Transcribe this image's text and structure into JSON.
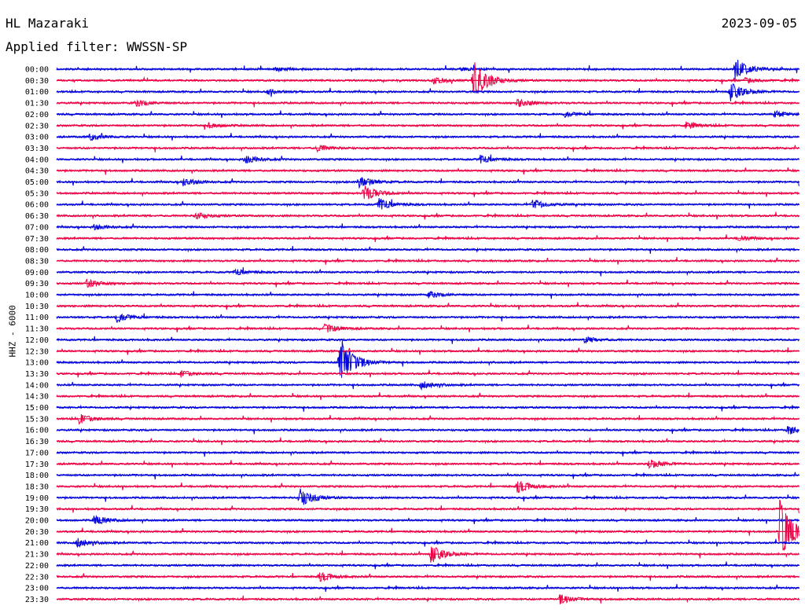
{
  "header": {
    "station_title": "HL Mazaraki",
    "filter_label": "Applied filter: WWSSN-SP",
    "date": "2023-09-05",
    "channel_label": "HHZ - 6000"
  },
  "colors": {
    "trace_a": "#0000dd",
    "trace_b": "#ee0044",
    "background": "#ffffff"
  },
  "chart_data": {
    "type": "line",
    "description_kind": "helicorder",
    "title": "HL Mazaraki",
    "subtitle": "Applied filter: WWSSN-SP",
    "date": "2023-09-05",
    "ylabel": "HHZ - 6000",
    "row_labels": [
      "00:00",
      "00:30",
      "01:00",
      "01:30",
      "02:00",
      "02:30",
      "03:00",
      "03:30",
      "04:00",
      "04:30",
      "05:00",
      "05:30",
      "06:00",
      "06:30",
      "07:00",
      "07:30",
      "08:00",
      "08:30",
      "09:00",
      "09:30",
      "10:00",
      "10:30",
      "11:00",
      "11:30",
      "12:00",
      "12:30",
      "13:00",
      "13:30",
      "14:00",
      "14:30",
      "15:00",
      "15:30",
      "16:00",
      "16:30",
      "17:00",
      "17:30",
      "18:00",
      "18:30",
      "19:00",
      "19:30",
      "20:00",
      "20:30",
      "21:00",
      "21:30",
      "22:00",
      "22:30",
      "23:00",
      "23:30"
    ],
    "row_colors": [
      "blue",
      "red"
    ],
    "minutes_per_row": 30,
    "events": [
      {
        "row": "00:00",
        "minute": 8.8,
        "amp": 2.5
      },
      {
        "row": "00:00",
        "minute": 16.3,
        "amp": 2
      },
      {
        "row": "00:00",
        "minute": 27.4,
        "amp": 14
      },
      {
        "row": "00:30",
        "minute": 16.8,
        "amp": 28
      },
      {
        "row": "00:30",
        "minute": 15.2,
        "amp": 4
      },
      {
        "row": "00:30",
        "minute": 27.8,
        "amp": 3
      },
      {
        "row": "01:00",
        "minute": 8.5,
        "amp": 3
      },
      {
        "row": "01:00",
        "minute": 27.2,
        "amp": 12
      },
      {
        "row": "01:30",
        "minute": 3.2,
        "amp": 4
      },
      {
        "row": "01:30",
        "minute": 18.6,
        "amp": 5
      },
      {
        "row": "02:00",
        "minute": 20.5,
        "amp": 3
      },
      {
        "row": "02:00",
        "minute": 29,
        "amp": 4
      },
      {
        "row": "02:30",
        "minute": 6.1,
        "amp": 3
      },
      {
        "row": "02:30",
        "minute": 25.4,
        "amp": 4
      },
      {
        "row": "03:00",
        "minute": 1.3,
        "amp": 4
      },
      {
        "row": "03:30",
        "minute": 10.5,
        "amp": 4
      },
      {
        "row": "04:00",
        "minute": 7.6,
        "amp": 5
      },
      {
        "row": "04:00",
        "minute": 17.1,
        "amp": 5
      },
      {
        "row": "05:00",
        "minute": 5.1,
        "amp": 5
      },
      {
        "row": "05:00",
        "minute": 12.2,
        "amp": 8
      },
      {
        "row": "05:30",
        "minute": 12.4,
        "amp": 10
      },
      {
        "row": "06:00",
        "minute": 13,
        "amp": 8
      },
      {
        "row": "06:00",
        "minute": 19.2,
        "amp": 6
      },
      {
        "row": "06:30",
        "minute": 5.6,
        "amp": 4
      },
      {
        "row": "07:00",
        "minute": 1.5,
        "amp": 3
      },
      {
        "row": "07:30",
        "minute": 27.5,
        "amp": 3
      },
      {
        "row": "09:00",
        "minute": 7.2,
        "amp": 4
      },
      {
        "row": "09:30",
        "minute": 1.2,
        "amp": 5
      },
      {
        "row": "10:00",
        "minute": 15,
        "amp": 4
      },
      {
        "row": "11:00",
        "minute": 2.4,
        "amp": 6
      },
      {
        "row": "11:30",
        "minute": 10.8,
        "amp": 6
      },
      {
        "row": "12:00",
        "minute": 21.3,
        "amp": 4
      },
      {
        "row": "13:00",
        "minute": 11.4,
        "amp": 36
      },
      {
        "row": "13:30",
        "minute": 5,
        "amp": 4
      },
      {
        "row": "14:00",
        "minute": 14.7,
        "amp": 5
      },
      {
        "row": "15:30",
        "minute": 0.9,
        "amp": 6
      },
      {
        "row": "16:00",
        "minute": 29.5,
        "amp": 6
      },
      {
        "row": "17:30",
        "minute": 23.9,
        "amp": 6
      },
      {
        "row": "18:30",
        "minute": 18.6,
        "amp": 8
      },
      {
        "row": "19:00",
        "minute": 9.8,
        "amp": 12
      },
      {
        "row": "20:00",
        "minute": 1.5,
        "amp": 6
      },
      {
        "row": "21:00",
        "minute": 0.8,
        "amp": 6
      },
      {
        "row": "20:30",
        "minute": 29.2,
        "amp": 40
      },
      {
        "row": "21:30",
        "minute": 15.1,
        "amp": 12
      },
      {
        "row": "22:30",
        "minute": 10.6,
        "amp": 6
      },
      {
        "row": "23:30",
        "minute": 20.3,
        "amp": 6
      }
    ]
  }
}
